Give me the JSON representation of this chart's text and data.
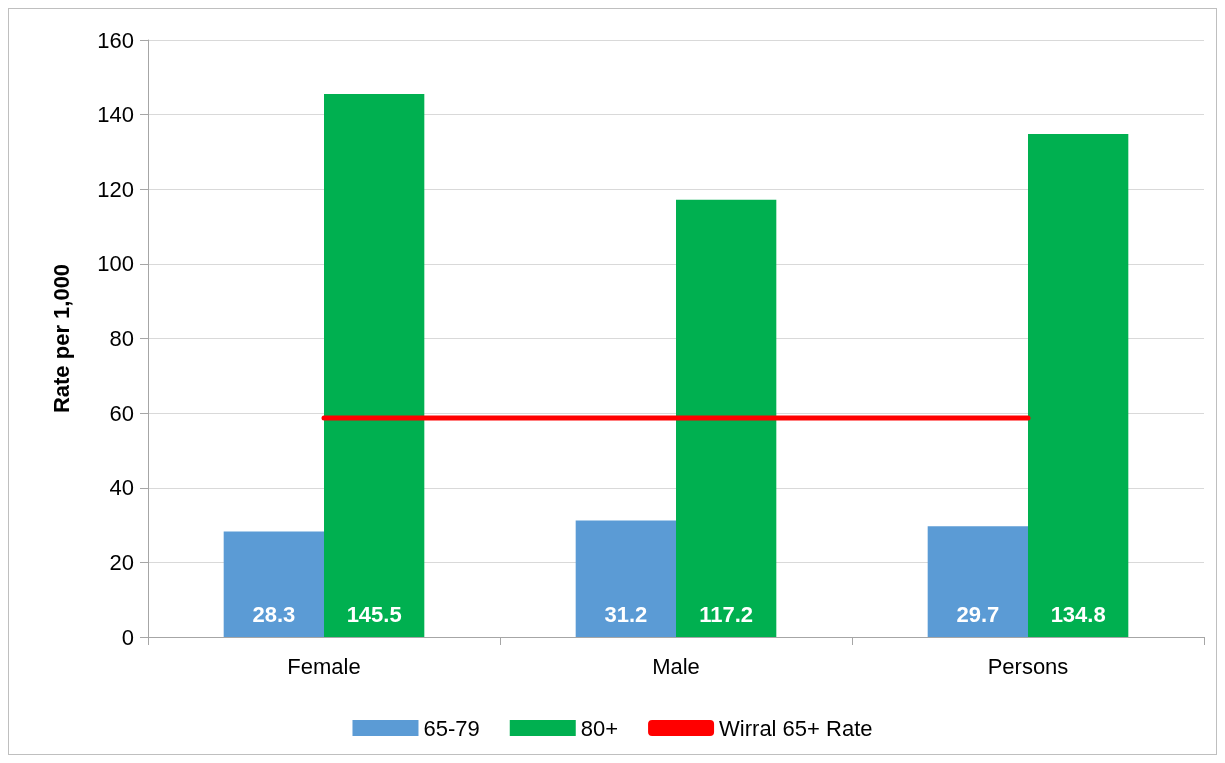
{
  "chart_data": {
    "type": "bar",
    "ylabel": "Rate per 1,000",
    "categories": [
      "Female",
      "Male",
      "Persons"
    ],
    "series": [
      {
        "name": "65-79",
        "color": "#5b9bd5",
        "values": [
          28.3,
          31.2,
          29.7
        ],
        "value_labels": [
          "28.3",
          "31.2",
          "29.7"
        ]
      },
      {
        "name": "80+",
        "color": "#00b050",
        "values": [
          145.5,
          117.2,
          134.8
        ],
        "value_labels": [
          "145.5",
          "117.2",
          "134.8"
        ]
      },
      {
        "name": "Wirral 65+ Rate",
        "type": "line",
        "color": "#ff0000",
        "values": [
          58.7,
          58.7,
          58.7
        ],
        "marker": "none",
        "line_style": "solid"
      }
    ],
    "ylim": [
      0,
      160
    ],
    "yticks": [
      0,
      20,
      40,
      60,
      80,
      100,
      120,
      140,
      160
    ],
    "grid": "y",
    "legend": "bottom"
  }
}
